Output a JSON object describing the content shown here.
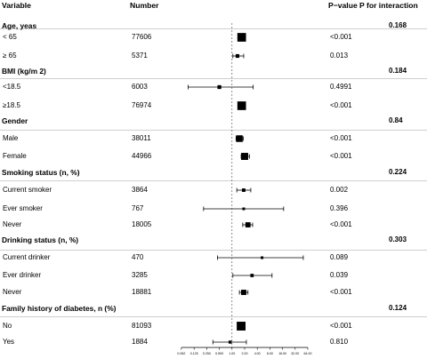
{
  "headers": {
    "variable": "Variable",
    "number": "Number",
    "pvalue": "P−value",
    "pinteraction": "P for interaction"
  },
  "chart_data": {
    "type": "forest",
    "xscale": "log2",
    "xlim": [
      0.0625,
      64
    ],
    "xticks": [
      "0.062",
      "0.125",
      "0.250",
      "0.500",
      "1.00",
      "2.00",
      "4.00",
      "8.00",
      "16.00",
      "32.00",
      "64.00"
    ],
    "reference_line": 1,
    "groups": [
      {
        "name": "Age, yeas",
        "p_interaction": "0.168",
        "rows": [
          {
            "label": "< 65",
            "number": "77606",
            "p": "<0.001",
            "est": 1.7,
            "lo": 1.5,
            "hi": 2.0
          },
          {
            "label": "≥ 65",
            "number": "5371",
            "p": "0.013",
            "est": 1.35,
            "lo": 1.05,
            "hi": 1.9
          }
        ]
      },
      {
        "name": "BMI (kg/m 2)",
        "p_interaction": "0.184",
        "rows": [
          {
            "label": "<18.5",
            "number": "6003",
            "p": "0.4991",
            "est": 0.5,
            "lo": 0.09,
            "hi": 3.2
          },
          {
            "label": "≥18.5",
            "number": "76974",
            "p": "<0.001",
            "est": 1.7,
            "lo": 1.5,
            "hi": 1.9
          }
        ]
      },
      {
        "name": "Gender",
        "p_interaction": "0.84",
        "rows": [
          {
            "label": "Male",
            "number": "38011",
            "p": "<0.001",
            "est": 1.5,
            "lo": 1.25,
            "hi": 1.85
          },
          {
            "label": "Female",
            "number": "44966",
            "p": "<0.001",
            "est": 2.0,
            "lo": 1.65,
            "hi": 2.6
          }
        ]
      },
      {
        "name": "Smoking status (n, %)",
        "p_interaction": "0.224",
        "rows": [
          {
            "label": "Current smoker",
            "number": "3864",
            "p": "0.002",
            "est": 1.9,
            "lo": 1.3,
            "hi": 2.8
          },
          {
            "label": "Ever smoker",
            "number": "767",
            "p": "0.396",
            "est": 1.9,
            "lo": 0.21,
            "hi": 17
          },
          {
            "label": "Never",
            "number": "18005",
            "p": "<0.001",
            "est": 2.4,
            "lo": 1.8,
            "hi": 3.1
          }
        ]
      },
      {
        "name": "Drinking status (n, %)",
        "p_interaction": "0.303",
        "rows": [
          {
            "label": "Current drinker",
            "number": "470",
            "p": "0.089",
            "est": 5.2,
            "lo": 0.45,
            "hi": 50
          },
          {
            "label": "Ever drinker",
            "number": "3285",
            "p": "0.039",
            "est": 3.0,
            "lo": 1.05,
            "hi": 9.0
          },
          {
            "label": "Never",
            "number": "18881",
            "p": "<0.001",
            "est": 1.9,
            "lo": 1.5,
            "hi": 2.4
          }
        ]
      },
      {
        "name": "Family history of diabetes, n (%)",
        "p_interaction": "0.124",
        "rows": [
          {
            "label": "No",
            "number": "81093",
            "p": "<0.001",
            "est": 1.65,
            "lo": 1.45,
            "hi": 1.9
          },
          {
            "label": "Yes",
            "number": "1884",
            "p": "0.810",
            "est": 0.9,
            "lo": 0.35,
            "hi": 2.2
          }
        ]
      }
    ]
  }
}
